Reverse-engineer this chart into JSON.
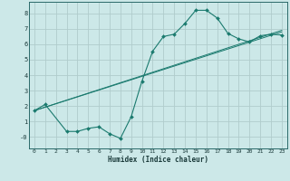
{
  "xlabel": "Humidex (Indice chaleur)",
  "background_color": "#cce8e8",
  "grid_color": "#b0cccc",
  "line_color": "#1a7a6e",
  "spine_color": "#2a6a6a",
  "xlim": [
    -0.5,
    23.5
  ],
  "ylim": [
    -0.75,
    8.75
  ],
  "xticks": [
    0,
    1,
    2,
    3,
    4,
    5,
    6,
    7,
    8,
    9,
    10,
    11,
    12,
    13,
    14,
    15,
    16,
    17,
    18,
    19,
    20,
    21,
    22,
    23
  ],
  "yticks": [
    0,
    1,
    2,
    3,
    4,
    5,
    6,
    7,
    8
  ],
  "ytick_labels": [
    "-0",
    "1",
    "2",
    "3",
    "4",
    "5",
    "6",
    "7",
    "8"
  ],
  "line1_x": [
    0,
    1,
    3,
    4,
    5,
    6,
    7,
    8,
    9,
    10,
    11,
    12,
    13,
    14,
    15,
    16,
    17,
    18,
    19,
    20,
    21,
    22,
    23
  ],
  "line1_y": [
    1.7,
    2.1,
    0.35,
    0.35,
    0.55,
    0.65,
    0.2,
    -0.1,
    1.3,
    3.6,
    5.55,
    6.5,
    6.65,
    7.35,
    8.2,
    8.2,
    7.7,
    6.7,
    6.35,
    6.15,
    6.55,
    6.65,
    6.6
  ],
  "line2_x": [
    0,
    23
  ],
  "line2_y": [
    1.7,
    6.8
  ],
  "line3_x": [
    0,
    23
  ],
  "line3_y": [
    1.7,
    6.9
  ],
  "xlabel_fontsize": 5.5,
  "tick_fontsize": 4.5
}
